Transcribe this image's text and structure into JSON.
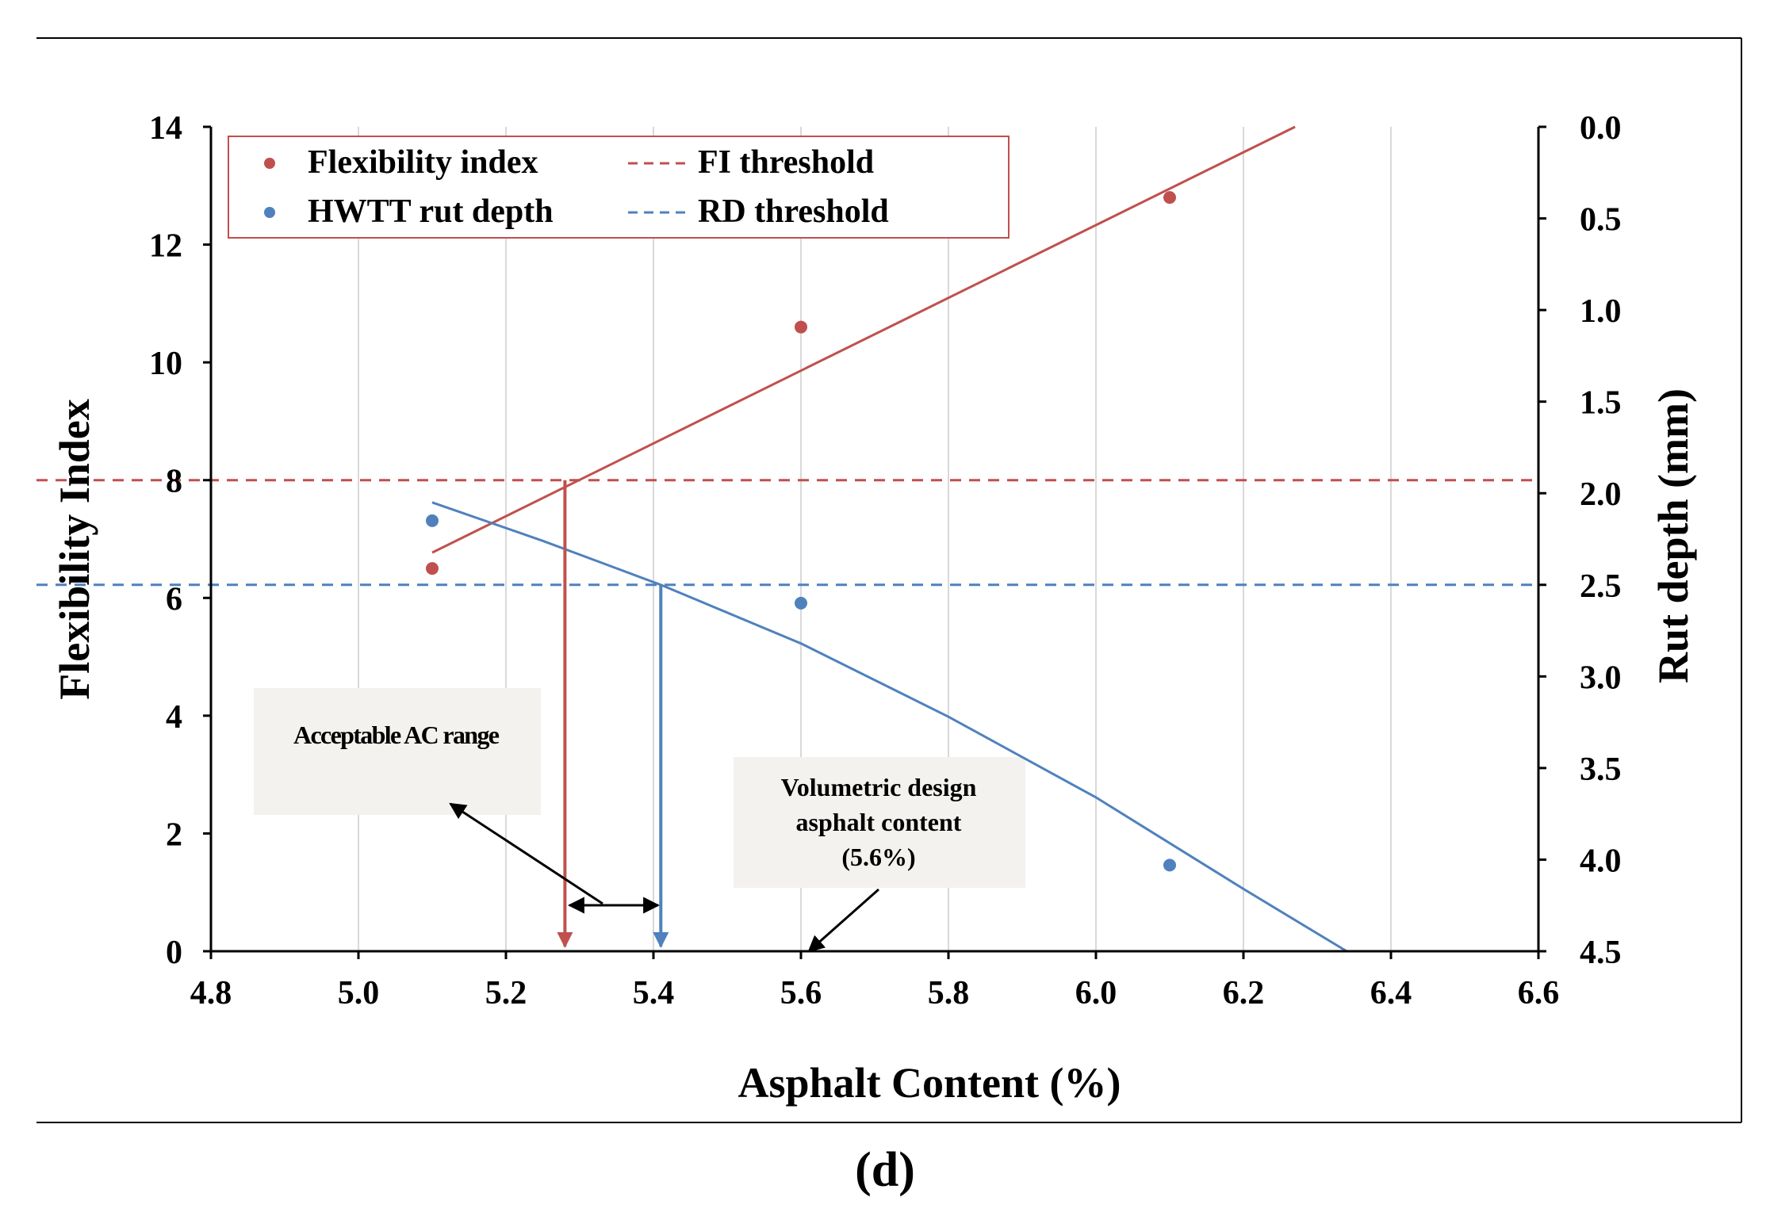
{
  "caption": "(d)",
  "colors": {
    "fi": "#c0504d",
    "rd": "#4f81bd",
    "grid": "#d9d9d9",
    "axis": "#000000",
    "annotationBox": "#f3f2ee"
  },
  "chart_data": {
    "type": "scatter",
    "xlabel": "Asphalt Content (%)",
    "ylabel": "Flexibility Index",
    "y2label": "Rut depth (mm)",
    "xlim": [
      4.8,
      6.6
    ],
    "ylim": [
      0,
      14
    ],
    "y2lim": [
      0,
      4.5
    ],
    "y2_inverted": true,
    "xticks": [
      "4.8",
      "5.0",
      "5.2",
      "5.4",
      "5.6",
      "5.8",
      "6.0",
      "6.2",
      "6.4",
      "6.6"
    ],
    "yticks": [
      "0",
      "2",
      "4",
      "6",
      "8",
      "10",
      "12",
      "14"
    ],
    "y2ticks": [
      "0.0",
      "0.5",
      "1.0",
      "1.5",
      "2.0",
      "2.5",
      "3.0",
      "3.5",
      "4.0",
      "4.5"
    ],
    "grid": "vertical",
    "legend": {
      "position": "top-left",
      "items": [
        "Flexibility index",
        "FI threshold",
        "HWTT rut depth",
        "RD threshold"
      ]
    },
    "series": [
      {
        "name": "Flexibility index",
        "axis": "left",
        "x": [
          5.1,
          5.6,
          6.1
        ],
        "y": [
          6.5,
          10.6,
          12.8
        ]
      },
      {
        "name": "HWTT rut depth",
        "axis": "right",
        "x": [
          5.1,
          5.6,
          6.1
        ],
        "y": [
          2.15,
          2.6,
          4.03
        ]
      }
    ],
    "fits": [
      {
        "name": "FI trend",
        "axis": "left",
        "x": [
          5.1,
          6.27
        ],
        "y": [
          6.77,
          14.0
        ]
      },
      {
        "name": "RD trend",
        "axis": "right",
        "x": [
          5.1,
          5.25,
          5.41,
          5.6,
          5.8,
          6.0,
          6.2,
          6.34
        ],
        "y": [
          2.05,
          2.26,
          2.5,
          2.82,
          3.22,
          3.66,
          4.16,
          4.5
        ]
      }
    ],
    "thresholds": [
      {
        "name": "FI threshold",
        "axis": "left",
        "value": 8
      },
      {
        "name": "RD threshold",
        "axis": "right",
        "value": 2.5
      }
    ],
    "drop_lines": [
      {
        "name": "FI intersection",
        "x": 5.28
      },
      {
        "name": "RD intersection",
        "x": 5.41
      }
    ],
    "annotations": {
      "acceptable_range": "Acceptable AC range",
      "volumetric": [
        "Volumetric design",
        "asphalt content",
        "(5.6%)"
      ]
    }
  }
}
